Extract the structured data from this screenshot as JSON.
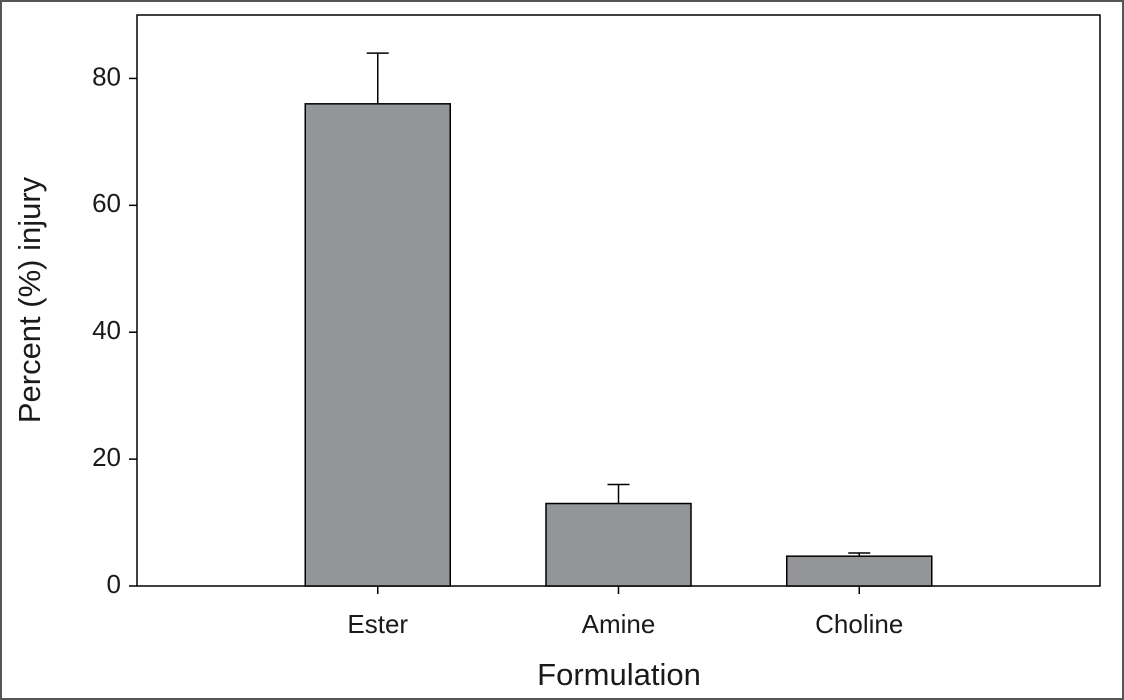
{
  "chart_data": {
    "type": "bar",
    "x_label": "Formulation",
    "y_label": "Percent (%) injury",
    "categories": [
      "Ester",
      "Amine",
      "Choline"
    ],
    "values": [
      76,
      13,
      4.7
    ],
    "errors": [
      8,
      3,
      0.5
    ],
    "color": "#939598",
    "ylim": [
      0,
      90
    ],
    "yticks": [
      0,
      20,
      40,
      60,
      80
    ],
    "grid": false
  }
}
